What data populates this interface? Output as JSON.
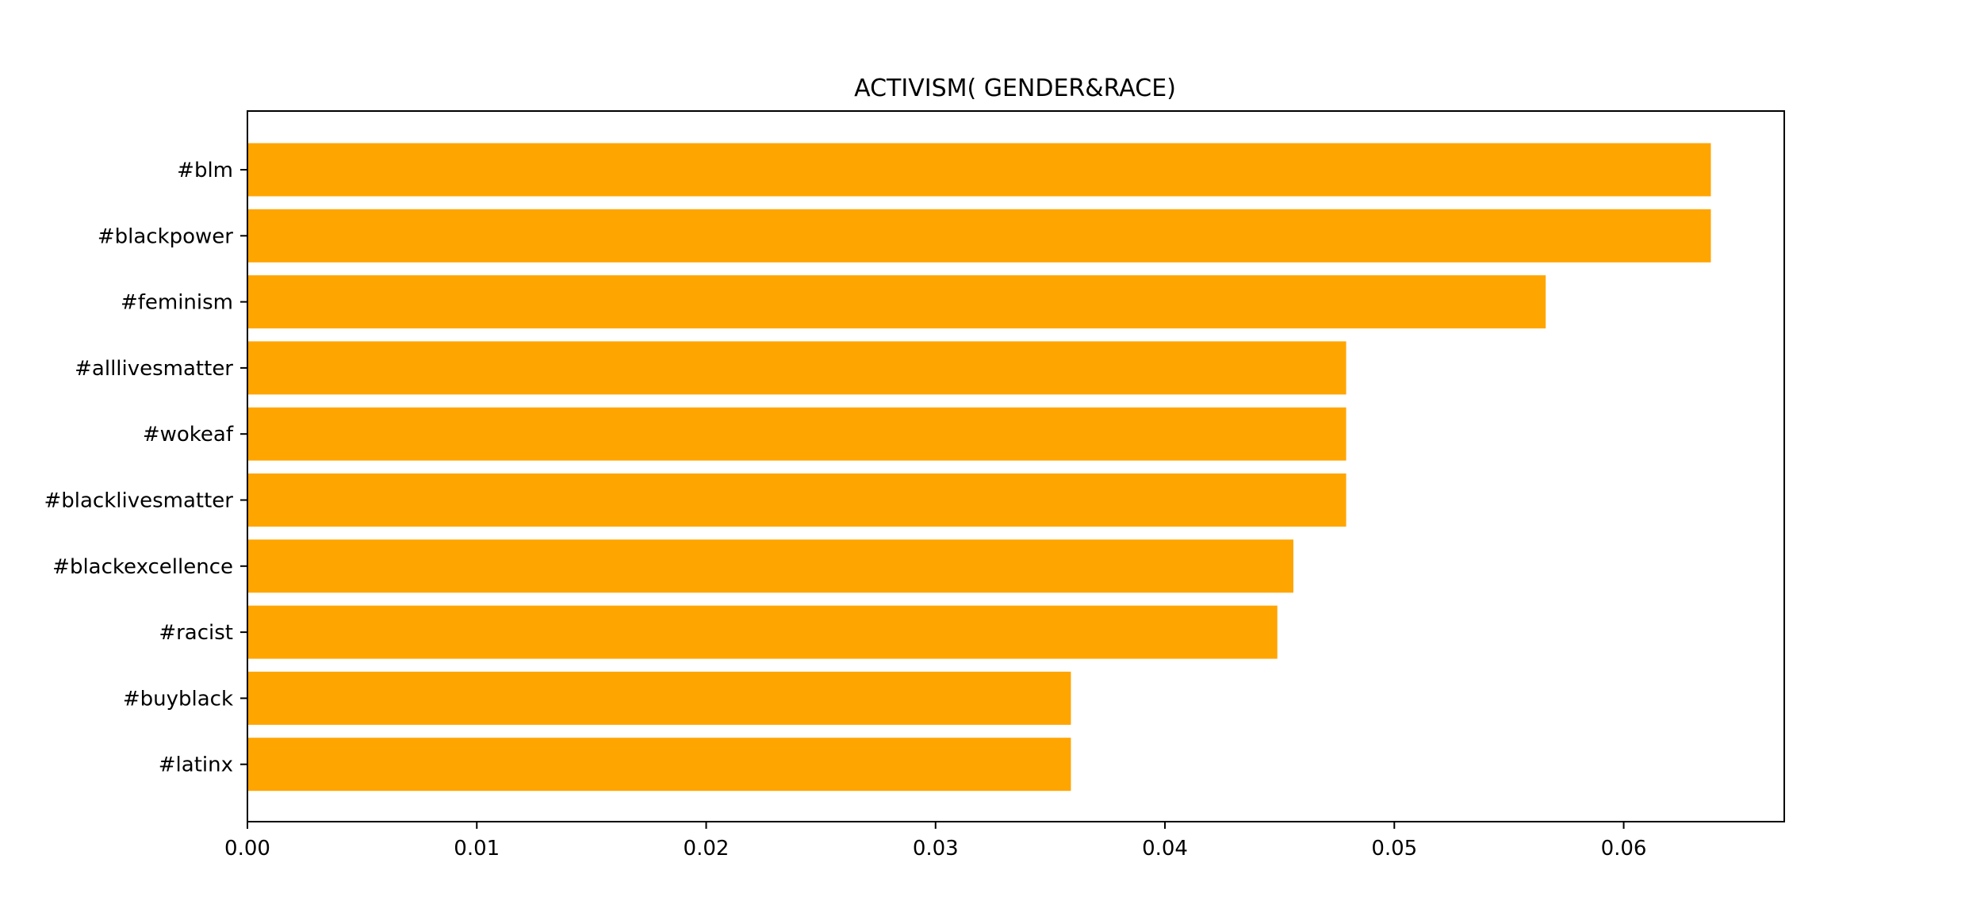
{
  "chart_data": {
    "type": "bar",
    "orientation": "horizontal",
    "title": "ACTIVISM( GENDER&RACE)",
    "xlabel": "",
    "ylabel": "",
    "categories": [
      "#blm",
      "#blackpower",
      "#feminism",
      "#alllivesmatter",
      "#wokeaf",
      "#blacklivesmatter",
      "#blackexcellence",
      "#racist",
      "#buyblack",
      "#latinx"
    ],
    "values": [
      0.0638,
      0.0638,
      0.0566,
      0.0479,
      0.0479,
      0.0479,
      0.0456,
      0.0449,
      0.0359,
      0.0359
    ],
    "xlim": [
      0,
      0.067
    ],
    "x_ticks": [
      0.0,
      0.01,
      0.02,
      0.03,
      0.04,
      0.05,
      0.06
    ],
    "x_tick_labels": [
      "0.00",
      "0.01",
      "0.02",
      "0.03",
      "0.04",
      "0.05",
      "0.06"
    ],
    "bar_color": "#ffa500",
    "grid": false,
    "legend": "none"
  }
}
